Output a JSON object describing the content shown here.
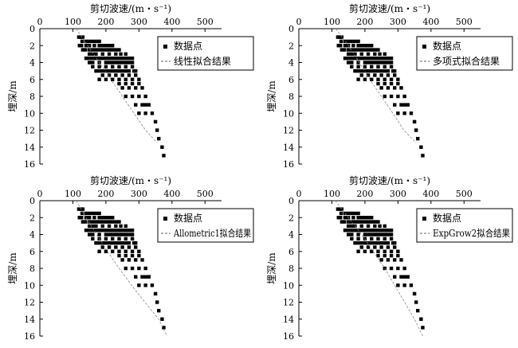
{
  "axis": {
    "xlabel": "剪切波速/(m・s⁻¹)",
    "ylabel": "埋深/m",
    "xticks": [
      0,
      100,
      200,
      300,
      400,
      500
    ],
    "yticks": [
      0,
      2,
      4,
      6,
      8,
      10,
      12,
      14,
      16
    ],
    "xlim": [
      0,
      550
    ],
    "ylim": [
      0,
      16
    ]
  },
  "chart_data": [
    {
      "type": "scatter",
      "legend": {
        "placement": "top-right",
        "points_label": "数据点",
        "fit_label": "线性拟合结果"
      },
      "fit": {
        "x": [
          110,
          145,
          180,
          215,
          250,
          285,
          320,
          355
        ],
        "y": [
          0,
          2,
          4,
          6,
          8,
          10,
          12,
          13.5
        ]
      }
    },
    {
      "type": "scatter",
      "legend": {
        "placement": "top-right",
        "points_label": "数据点",
        "fit_label": "多项式拟合结果"
      },
      "fit": {
        "x": [
          112,
          150,
          183,
          215,
          250,
          285,
          318,
          355
        ],
        "y": [
          0,
          2,
          4,
          6,
          8,
          10,
          12,
          13.5
        ]
      }
    },
    {
      "type": "scatter",
      "legend": {
        "placement": "top-right",
        "points_label": "数据点",
        "fit_label": "Allometric1拟合结果"
      },
      "fit": {
        "x": [
          110,
          140,
          172,
          205,
          240,
          278,
          318,
          360,
          385
        ],
        "y": [
          0,
          2,
          4,
          6,
          8,
          10,
          12,
          14,
          16
        ]
      }
    },
    {
      "type": "scatter",
      "legend": {
        "placement": "top-right",
        "points_label": "数据点",
        "fit_label": "ExpGrow2拟合结果"
      },
      "fit": {
        "x": [
          110,
          150,
          190,
          225,
          260,
          290,
          320,
          350,
          375
        ],
        "y": [
          0,
          2,
          4,
          6,
          8,
          10,
          12,
          14,
          16
        ]
      }
    }
  ],
  "points": {
    "x": [
      118,
      124,
      130,
      128,
      140,
      150,
      160,
      170,
      180,
      120,
      126,
      140,
      150,
      165,
      180,
      190,
      200,
      210,
      220,
      130,
      138,
      150,
      160,
      170,
      180,
      190,
      200,
      210,
      220,
      230,
      240,
      150,
      160,
      170,
      190,
      210,
      230,
      245,
      260,
      140,
      150,
      160,
      170,
      180,
      190,
      200,
      210,
      220,
      230,
      240,
      250,
      260,
      270,
      280,
      150,
      160,
      180,
      200,
      210,
      220,
      230,
      240,
      250,
      260,
      270,
      280,
      160,
      180,
      200,
      220,
      240,
      260,
      280,
      170,
      180,
      190,
      200,
      210,
      220,
      230,
      240,
      250,
      260,
      270,
      285,
      290,
      190,
      210,
      230,
      250,
      270,
      290,
      180,
      200,
      220,
      240,
      260,
      280,
      300,
      240,
      260,
      280,
      300,
      250,
      270,
      290,
      310,
      260,
      280,
      300,
      320,
      290,
      310,
      320,
      330,
      300,
      320,
      340,
      350,
      355,
      360,
      370,
      375
    ],
    "y": [
      1,
      1,
      1,
      1.5,
      1.5,
      1.5,
      1.5,
      1.5,
      1.5,
      2,
      2,
      2,
      2,
      2,
      2,
      2,
      2,
      2,
      2,
      2.5,
      2.5,
      2.5,
      2.5,
      2.5,
      2.5,
      2.5,
      2.5,
      2.5,
      2.5,
      2.5,
      2.5,
      3,
      3,
      3,
      3,
      3,
      3,
      3,
      3,
      3.5,
      3.5,
      3.5,
      3.5,
      3.5,
      3.5,
      3.5,
      3.5,
      3.5,
      3.5,
      3.5,
      3.5,
      3.5,
      3.5,
      3.5,
      4,
      4,
      4,
      4,
      4,
      4,
      4,
      4,
      4,
      4,
      4,
      4,
      4.5,
      4.5,
      4.5,
      4.5,
      4.5,
      4.5,
      4.5,
      5,
      5,
      5,
      5,
      5,
      5,
      5,
      5,
      5,
      5,
      5,
      5,
      5,
      5.5,
      5.5,
      5.5,
      5.5,
      5.5,
      5.5,
      6,
      6,
      6,
      6,
      6,
      6,
      6,
      6.5,
      6.5,
      6.5,
      6.5,
      7,
      7,
      7,
      7,
      8,
      8,
      8,
      8,
      9,
      9,
      9,
      9,
      10,
      10,
      10,
      11,
      12,
      13,
      14,
      15
    ]
  }
}
